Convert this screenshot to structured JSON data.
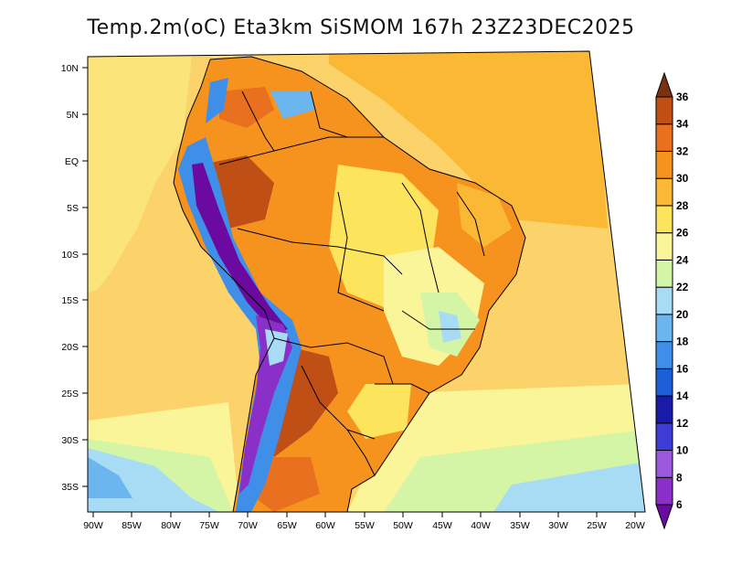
{
  "title": "Temp.2m(oC) Eta3km SiSMOM 167h 23Z23DEC2025",
  "map": {
    "variable": "2m air temperature",
    "units": "oC",
    "lat_labels": [
      "10N",
      "5N",
      "EQ",
      "5S",
      "10S",
      "15S",
      "20S",
      "25S",
      "30S",
      "35S"
    ],
    "lat_values": [
      10,
      5,
      0,
      -5,
      -10,
      -15,
      -20,
      -25,
      -30,
      -35
    ],
    "lon_labels": [
      "90W",
      "85W",
      "80W",
      "75W",
      "70W",
      "65W",
      "60W",
      "55W",
      "50W",
      "45W",
      "40W",
      "35W",
      "30W",
      "25W",
      "20W"
    ],
    "lon_values": [
      -90,
      -85,
      -80,
      -75,
      -70,
      -65,
      -60,
      -55,
      -50,
      -45,
      -40,
      -35,
      -30,
      -25,
      -20
    ],
    "colorbar": {
      "levels": [
        6,
        8,
        10,
        12,
        14,
        16,
        18,
        20,
        22,
        24,
        26,
        28,
        30,
        32,
        34,
        36
      ],
      "labels": [
        "6",
        "8",
        "10",
        "12",
        "14",
        "16",
        "18",
        "20",
        "22",
        "24",
        "26",
        "28",
        "30",
        "32",
        "34",
        "36"
      ],
      "colors": [
        "#6a0aa0",
        "#8b2fc9",
        "#9b59e0",
        "#3d3dd6",
        "#1a1aa8",
        "#1c5fd6",
        "#3f8fe8",
        "#6cb6f0",
        "#a8dcf5",
        "#d4f5a6",
        "#fbf59a",
        "#fce45c",
        "#fbb835",
        "#f6931e",
        "#e8701e",
        "#c04f15",
        "#7a3210"
      ]
    }
  }
}
